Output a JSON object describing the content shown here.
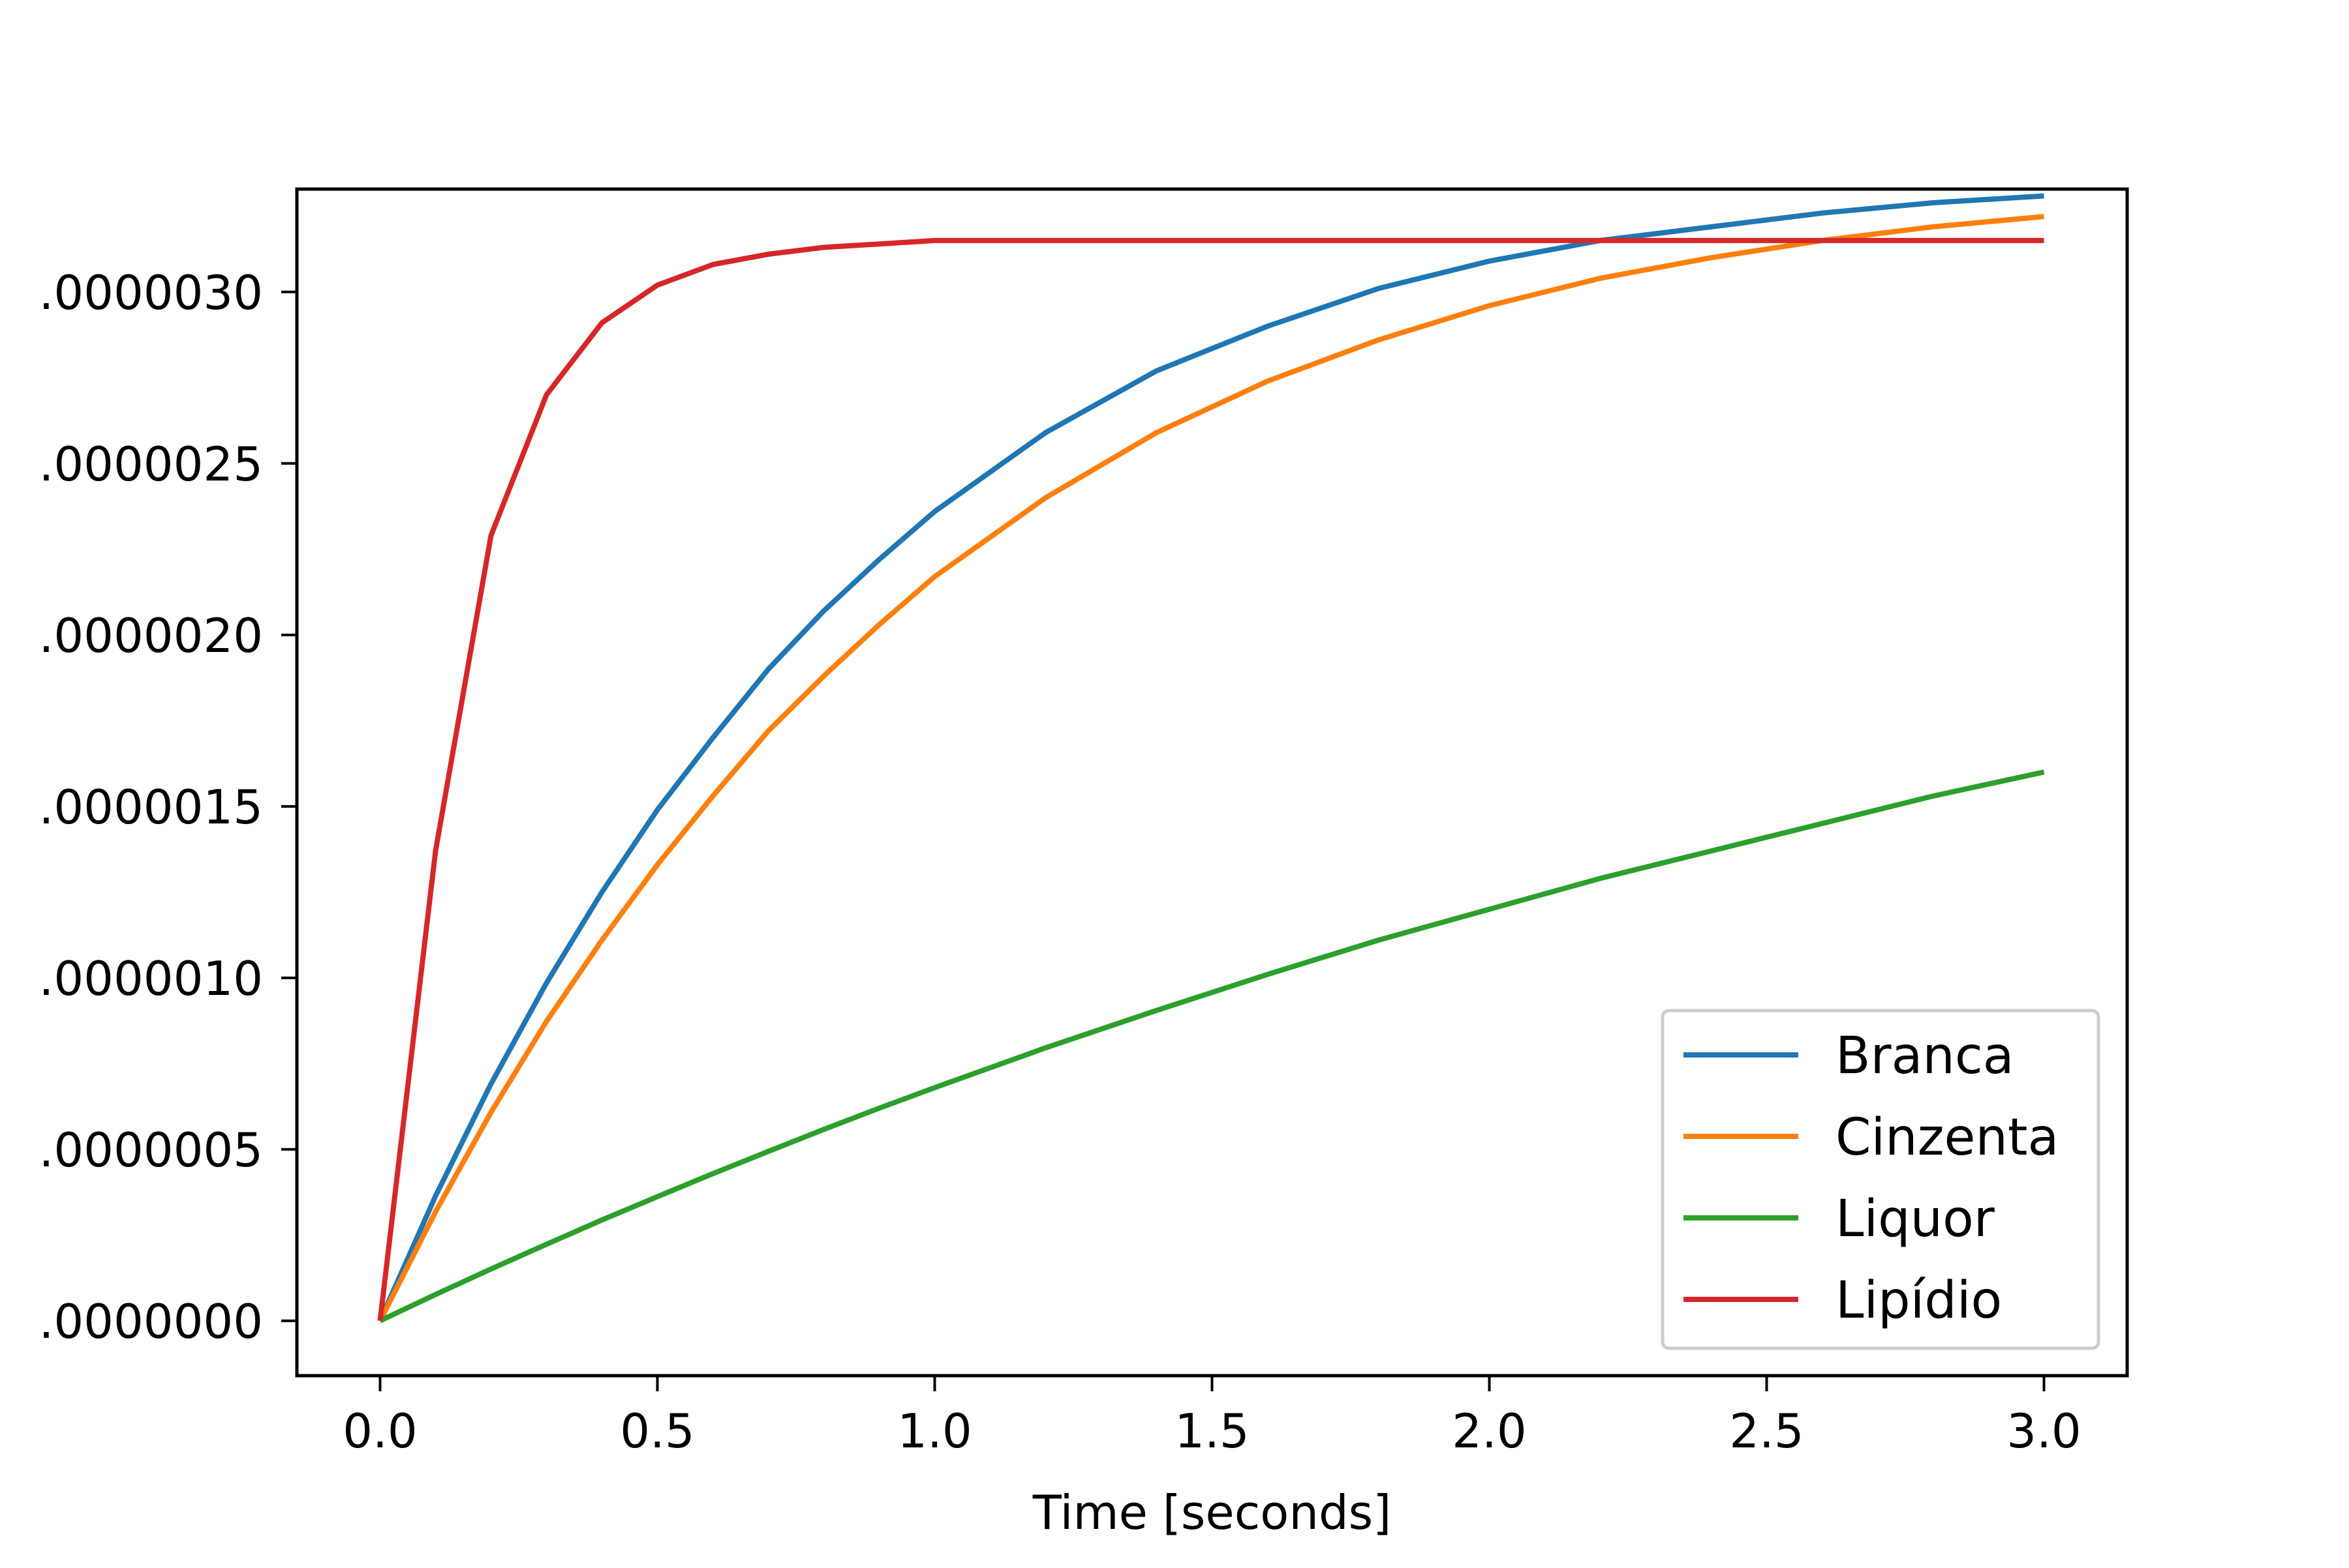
{
  "chart_data": {
    "type": "line",
    "title": "",
    "xlabel": "Time [seconds]",
    "ylabel": "",
    "xlim": [
      -0.15,
      3.15
    ],
    "ylim": [
      -1.6e-07,
      3.3e-06
    ],
    "xticks": [
      0.0,
      0.5,
      1.0,
      1.5,
      2.0,
      2.5,
      3.0
    ],
    "xtick_labels": [
      "0.0",
      "0.5",
      "1.0",
      "1.5",
      "2.0",
      "2.5",
      "3.0"
    ],
    "yticks": [
      0.0,
      5e-07,
      1e-06,
      1.5e-06,
      2e-06,
      2.5e-06,
      3e-06
    ],
    "ytick_labels": [
      ".0000000",
      ".0000005",
      ".0000010",
      ".0000015",
      ".0000020",
      ".0000025",
      ".0000030"
    ],
    "grid": false,
    "legend_position": "lower-right",
    "x": [
      0.0,
      0.1,
      0.2,
      0.3,
      0.4,
      0.5,
      0.6,
      0.7,
      0.8,
      0.9,
      1.0,
      1.2,
      1.4,
      1.6,
      1.8,
      2.0,
      2.2,
      2.4,
      2.6,
      2.8,
      3.0
    ],
    "series": [
      {
        "name": "Branca",
        "color": "#1f77b4",
        "values": [
          0.0,
          3.64e-07,
          6.91e-07,
          9.85e-07,
          1.25e-06,
          1.49e-06,
          1.7e-06,
          1.9e-06,
          2.07e-06,
          2.22e-06,
          2.36e-06,
          2.59e-06,
          2.77e-06,
          2.9e-06,
          3.01e-06,
          3.09e-06,
          3.15e-06,
          3.19e-06,
          3.23e-06,
          3.26e-06,
          3.28e-06
        ]
      },
      {
        "name": "Cinzenta",
        "color": "#ff7f0e",
        "values": [
          0.0,
          3.18e-07,
          6.08e-07,
          8.73e-07,
          1.11e-06,
          1.33e-06,
          1.53e-06,
          1.72e-06,
          1.88e-06,
          2.03e-06,
          2.17e-06,
          2.4e-06,
          2.59e-06,
          2.74e-06,
          2.86e-06,
          2.96e-06,
          3.04e-06,
          3.1e-06,
          3.15e-06,
          3.19e-06,
          3.22e-06
        ]
      },
      {
        "name": "Liquor",
        "color": "#2ca02c",
        "values": [
          0.0,
          7.66e-08,
          1.51e-07,
          2.23e-07,
          2.94e-07,
          3.62e-07,
          4.29e-07,
          4.94e-07,
          5.58e-07,
          6.2e-07,
          6.8e-07,
          7.96e-07,
          9.05e-07,
          1.01e-06,
          1.11e-06,
          1.2e-06,
          1.29e-06,
          1.37e-06,
          1.45e-06,
          1.53e-06,
          1.6e-06
        ]
      },
      {
        "name": "Lipídio",
        "color": "#d62728",
        "values": [
          0.0,
          1.37e-06,
          2.29e-06,
          2.7e-06,
          2.91e-06,
          3.02e-06,
          3.08e-06,
          3.11e-06,
          3.13e-06,
          3.14e-06,
          3.15e-06,
          3.15e-06,
          3.15e-06,
          3.15e-06,
          3.15e-06,
          3.15e-06,
          3.15e-06,
          3.15e-06,
          3.15e-06,
          3.15e-06,
          3.15e-06
        ]
      }
    ]
  }
}
